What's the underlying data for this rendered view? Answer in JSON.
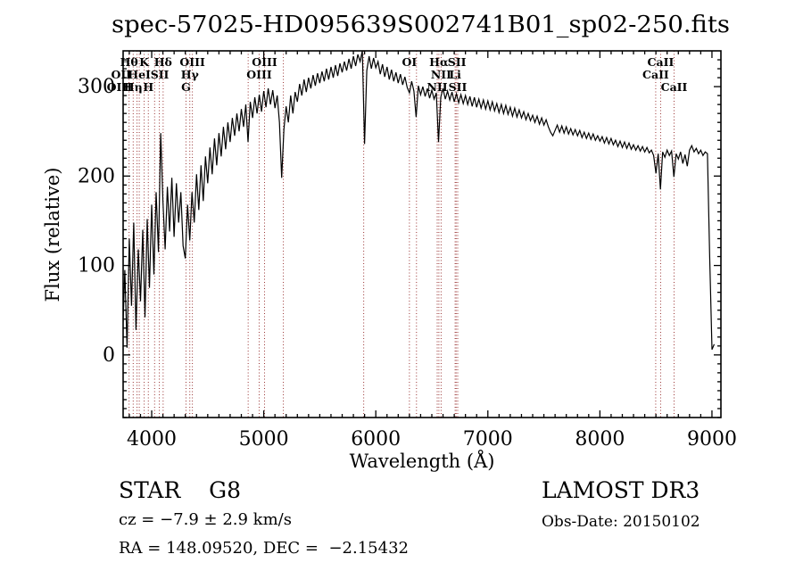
{
  "chart_data": {
    "type": "line",
    "title": "spec-57025-HD095639S002741B01_sp02-250.fits",
    "xlabel": "Wavelength (Å)",
    "ylabel": "Flux (relative)",
    "xlim": [
      3745,
      9080
    ],
    "ylim": [
      -70,
      340
    ],
    "xticks": [
      4000,
      5000,
      6000,
      7000,
      8000,
      9000
    ],
    "yticks": [
      0,
      100,
      200,
      300
    ],
    "x_minor_step": 100,
    "y_minor_step": 10,
    "grid": false,
    "legend": null,
    "series": [
      {
        "name": "spectrum",
        "color": "#000000",
        "x_start": 3740,
        "x_step": 20,
        "flux": [
          20,
          95,
          8,
          130,
          55,
          148,
          28,
          118,
          60,
          140,
          42,
          152,
          75,
          168,
          90,
          182,
          115,
          248,
          172,
          118,
          188,
          138,
          198,
          132,
          192,
          148,
          182,
          122,
          108,
          168,
          128,
          182,
          148,
          202,
          162,
          212,
          172,
          222,
          192,
          232,
          202,
          242,
          212,
          248,
          222,
          255,
          230,
          260,
          238,
          265,
          245,
          270,
          250,
          275,
          255,
          280,
          238,
          283,
          265,
          288,
          270,
          291,
          272,
          295,
          277,
          298,
          280,
          296,
          276,
          290,
          260,
          198,
          252,
          278,
          260,
          290,
          270,
          294,
          283,
          303,
          290,
          308,
          294,
          310,
          298,
          313,
          301,
          315,
          304,
          317,
          306,
          320,
          308,
          322,
          310,
          324,
          312,
          326,
          316,
          328,
          318,
          331,
          320,
          334,
          323,
          336,
          328,
          340,
          236,
          318,
          334,
          320,
          332,
          321,
          328,
          314,
          325,
          311,
          322,
          308,
          319,
          306,
          316,
          304,
          314,
          302,
          311,
          299,
          293,
          306,
          295,
          266,
          301,
          291,
          300,
          289,
          298,
          287,
          296,
          286,
          293,
          238,
          288,
          298,
          286,
          295,
          285,
          294,
          283,
          292,
          282,
          291,
          281,
          290,
          280,
          289,
          278,
          288,
          277,
          286,
          276,
          285,
          275,
          284,
          274,
          283,
          273,
          281,
          271,
          280,
          270,
          279,
          269,
          277,
          267,
          276,
          266,
          274,
          265,
          272,
          263,
          270,
          262,
          268,
          260,
          267,
          258,
          265,
          257,
          263,
          255,
          249,
          245,
          251,
          257,
          249,
          256,
          248,
          255,
          247,
          253,
          246,
          252,
          245,
          251,
          243,
          249,
          242,
          248,
          241,
          247,
          240,
          245,
          239,
          244,
          237,
          243,
          236,
          242,
          235,
          240,
          233,
          239,
          232,
          238,
          231,
          237,
          230,
          235,
          229,
          234,
          228,
          233,
          227,
          232,
          226,
          229,
          223,
          203,
          225,
          185,
          227,
          221,
          229,
          223,
          228,
          199,
          225,
          219,
          227,
          214,
          224,
          211,
          229,
          234,
          227,
          231,
          225,
          229,
          223,
          227,
          225,
          110,
          6,
          12
        ]
      }
    ],
    "spectral_line_markers": {
      "color": "#993333",
      "wavelengths": [
        3798,
        3835,
        3869,
        3889,
        3933,
        3970,
        4026,
        4068,
        4102,
        4306,
        4340,
        4363,
        4861,
        4959,
        5007,
        5175,
        5892,
        6300,
        6363,
        6548,
        6563,
        6583,
        6708,
        6717,
        6731,
        8498,
        8542,
        8662
      ],
      "labels": [
        {
          "text": "Hθ",
          "wavelength": 3798,
          "row": 1
        },
        {
          "text": "K",
          "wavelength": 3933,
          "row": 1
        },
        {
          "text": "Hδ",
          "wavelength": 4102,
          "row": 1
        },
        {
          "text": "OIII",
          "wavelength": 4363,
          "row": 1
        },
        {
          "text": "OIII",
          "wavelength": 5007,
          "row": 1
        },
        {
          "text": "OI",
          "wavelength": 6300,
          "row": 1
        },
        {
          "text": "Hα",
          "wavelength": 6563,
          "row": 1
        },
        {
          "text": "SII",
          "wavelength": 6724,
          "row": 1
        },
        {
          "text": "CaII",
          "wavelength": 8542,
          "row": 1
        },
        {
          "text": "OII",
          "wavelength": 3727,
          "row": 2
        },
        {
          "text": "HeI",
          "wavelength": 3889,
          "row": 2
        },
        {
          "text": "SII",
          "wavelength": 4072,
          "row": 2
        },
        {
          "text": "Hγ",
          "wavelength": 4340,
          "row": 2
        },
        {
          "text": "OIII",
          "wavelength": 4959,
          "row": 2
        },
        {
          "text": "NII",
          "wavelength": 6583,
          "row": 2
        },
        {
          "text": "Li",
          "wavelength": 6708,
          "row": 2
        },
        {
          "text": "CaII",
          "wavelength": 8498,
          "row": 2
        },
        {
          "text": "OIII",
          "wavelength": 3712,
          "row": 3
        },
        {
          "text": "Hη",
          "wavelength": 3835,
          "row": 3
        },
        {
          "text": "H",
          "wavelength": 3970,
          "row": 3
        },
        {
          "text": "G",
          "wavelength": 4306,
          "row": 3
        },
        {
          "text": "NII",
          "wavelength": 6548,
          "row": 3
        },
        {
          "text": "SII",
          "wavelength": 6731,
          "row": 3
        },
        {
          "text": "CaII",
          "wavelength": 8662,
          "row": 3
        }
      ]
    }
  },
  "footer": {
    "class_line": "STAR    G8",
    "cz_line": "cz = −7.9 ± 2.9 km/s",
    "radec_line": "RA = 148.09520, DEC =  −2.15432",
    "survey": "LAMOST DR3",
    "obsdate_line": "Obs-Date: 20150102"
  }
}
